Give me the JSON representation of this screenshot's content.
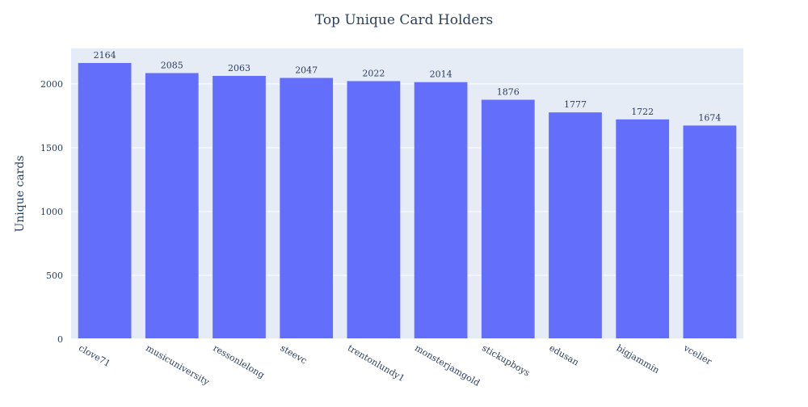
{
  "chart_data": {
    "type": "bar",
    "title": "Top Unique Card Holders",
    "xlabel": "",
    "ylabel": "Unique cards",
    "categories": [
      "clove71",
      "musicuniversity",
      "ressonlelong",
      "steevc",
      "trentonlundy1",
      "monsterjamgold",
      "stickupboys",
      "edusan",
      "bigjammin",
      "vcelier"
    ],
    "values": [
      2164,
      2085,
      2063,
      2047,
      2022,
      2014,
      1876,
      1777,
      1722,
      1674
    ],
    "data_labels": [
      "2164",
      "2085",
      "2063",
      "2047",
      "2022",
      "2014",
      "1876",
      "1777",
      "1722",
      "1674"
    ],
    "yticks": [
      0,
      500,
      1000,
      1500,
      2000
    ],
    "ylim": [
      0,
      2278
    ],
    "grid": true,
    "legend": false,
    "colors": {
      "bar": "#636efa",
      "plot_bg": "#e5ecf6",
      "grid": "#ffffff",
      "text": "#2a3f5f"
    }
  }
}
